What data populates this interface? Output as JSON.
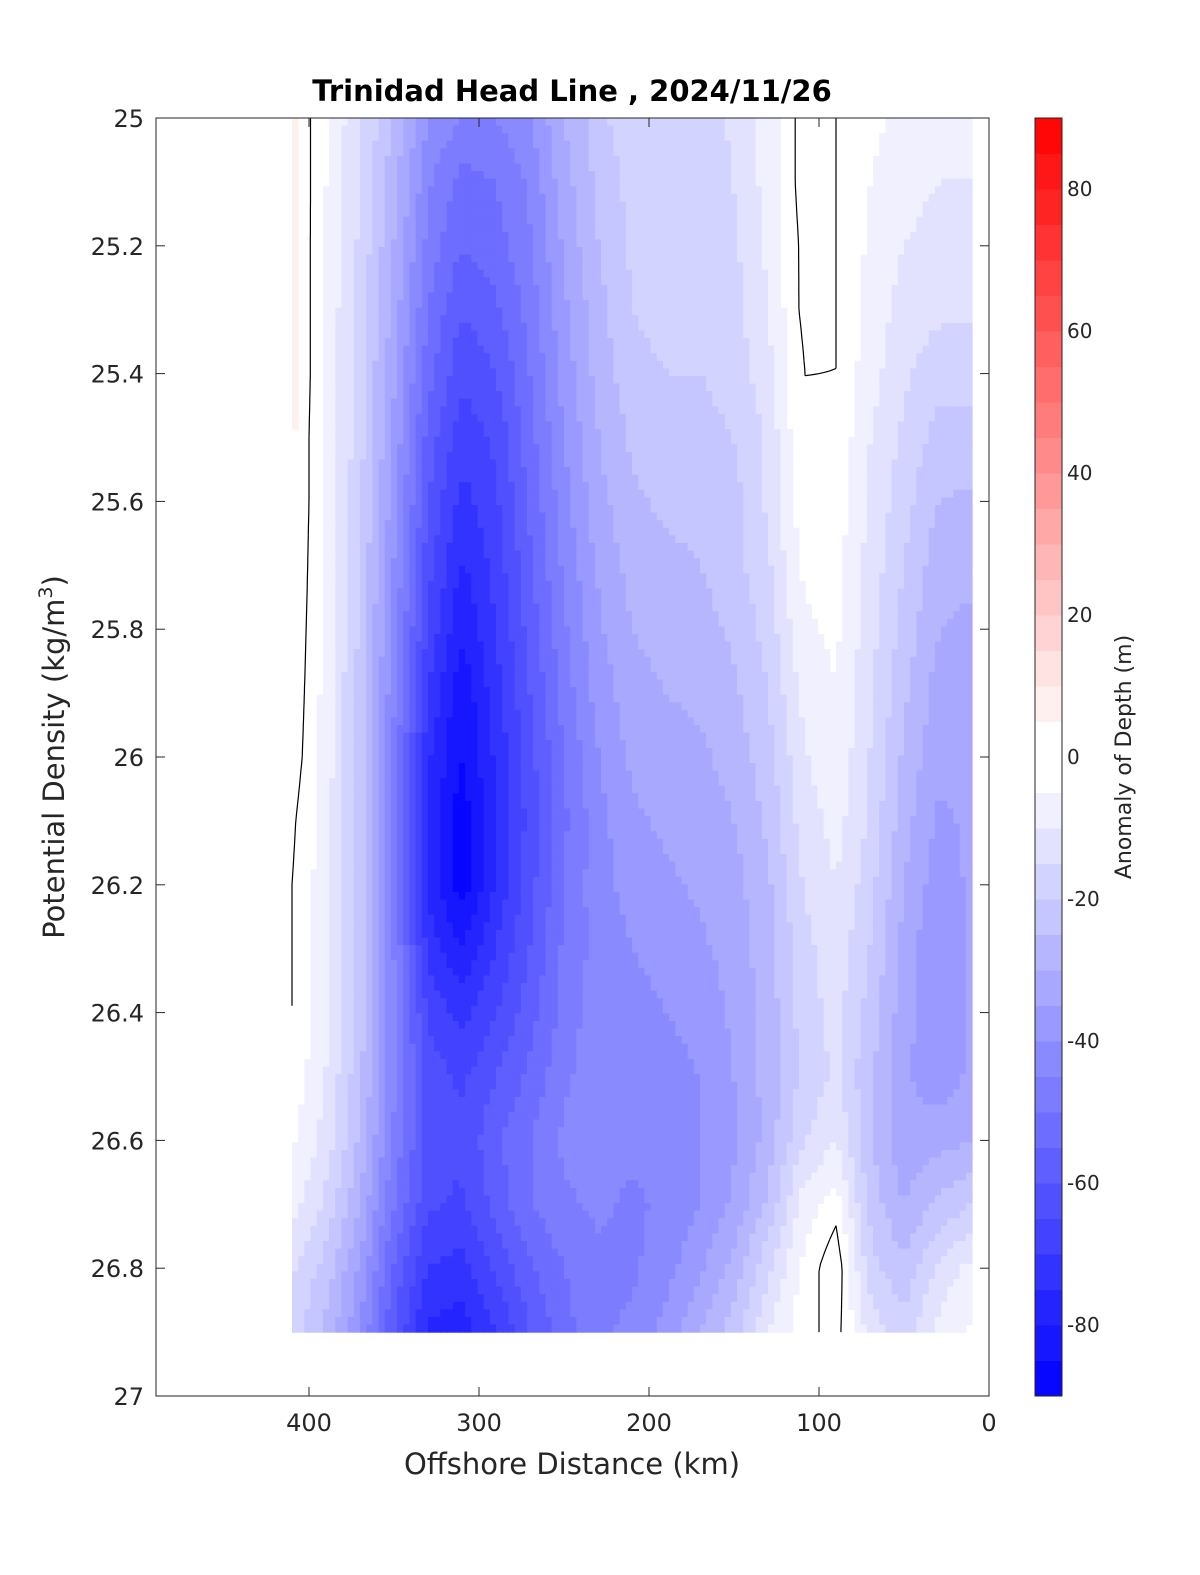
{
  "chart_data": {
    "type": "heatmap",
    "title": "Trinidad Head Line , 2024/11/26",
    "xlabel": "Offshore Distance (km)",
    "ylabel_main": "Potential Density (kg/m",
    "ylabel_sup": "3",
    "ylabel_close": ")",
    "xlim": [
      490,
      0
    ],
    "ylim": [
      25,
      27
    ],
    "y_reversed": true,
    "x_ticks": [
      400,
      300,
      200,
      100,
      0
    ],
    "x_tick_labels": [
      "400",
      "300",
      "200",
      "100",
      "0"
    ],
    "y_ticks": [
      25,
      25.2,
      25.4,
      25.6,
      25.8,
      26,
      26.2,
      26.4,
      26.6,
      26.8,
      27
    ],
    "y_tick_labels": [
      "25",
      "25.2",
      "25.4",
      "25.6",
      "25.8",
      "26",
      "26.2",
      "26.4",
      "26.6",
      "26.8",
      "27"
    ],
    "colorbar": {
      "label": "Anomaly of Depth (m)",
      "range": [
        -90,
        90
      ],
      "step": 5,
      "ticks": [
        80,
        60,
        40,
        20,
        0,
        -20,
        -40,
        -60,
        -80
      ],
      "tick_labels": [
        "80",
        "60",
        "40",
        "20",
        "0",
        "-20",
        "-40",
        "-60",
        "-80"
      ],
      "color_min": "#0000ff",
      "color_zero": "#ffffff",
      "color_max": "#ff0000"
    },
    "grid": false,
    "x": [
      410,
      390,
      370,
      350,
      330,
      310,
      290,
      270,
      250,
      230,
      210,
      190,
      170,
      150,
      130,
      110,
      90,
      70,
      50,
      30,
      10
    ],
    "y": [
      25.0,
      25.1,
      25.2,
      25.3,
      25.4,
      25.5,
      25.6,
      25.7,
      25.8,
      25.9,
      26.0,
      26.1,
      26.2,
      26.3,
      26.4,
      26.5,
      26.6,
      26.7,
      26.8,
      26.9
    ],
    "z": [
      [
        6,
        -5,
        -14,
        -26,
        -40,
        -45,
        -45,
        -40,
        -30,
        -22,
        -16,
        -16,
        -18,
        -14,
        -8,
        2,
        0,
        -4,
        -6,
        -8,
        -8
      ],
      [
        6,
        -5,
        -15,
        -28,
        -44,
        -52,
        -50,
        -44,
        -32,
        -24,
        -18,
        -16,
        -18,
        -15,
        -8,
        2,
        0,
        -5,
        -8,
        -10,
        -10
      ],
      [
        7,
        -6,
        -16,
        -30,
        -47,
        -55,
        -52,
        -46,
        -34,
        -25,
        -19,
        -17,
        -18,
        -16,
        -9,
        1,
        0,
        -6,
        -10,
        -12,
        -12
      ],
      [
        7,
        -6,
        -17,
        -32,
        -50,
        -60,
        -56,
        -48,
        -36,
        -27,
        -20,
        -18,
        -19,
        -17,
        -10,
        1,
        0,
        -7,
        -12,
        -14,
        -14
      ],
      [
        7,
        -6,
        -18,
        -34,
        -53,
        -64,
        -60,
        -50,
        -38,
        -28,
        -22,
        -20,
        -20,
        -18,
        -12,
        0,
        0,
        -8,
        -14,
        -18,
        -18
      ],
      [
        6,
        -6,
        -18,
        -36,
        -57,
        -68,
        -64,
        -52,
        -40,
        -30,
        -24,
        -22,
        -22,
        -20,
        -14,
        0,
        -1,
        -10,
        -16,
        -22,
        -22
      ],
      [
        6,
        -6,
        -19,
        -38,
        -60,
        -72,
        -66,
        -54,
        -42,
        -32,
        -26,
        -24,
        -24,
        -22,
        -14,
        -2,
        -2,
        -11,
        -18,
        -25,
        -26
      ],
      [
        6,
        -7,
        -20,
        -40,
        -63,
        -76,
        -68,
        -56,
        -44,
        -34,
        -28,
        -26,
        -25,
        -22,
        -16,
        -4,
        -3,
        -12,
        -20,
        -28,
        -29
      ],
      [
        5,
        -7,
        -21,
        -42,
        -66,
        -80,
        -70,
        -58,
        -46,
        -36,
        -30,
        -28,
        -27,
        -24,
        -18,
        -6,
        -4,
        -13,
        -22,
        -30,
        -31
      ],
      [
        4,
        -7,
        -22,
        -44,
        -70,
        -84,
        -72,
        -60,
        -48,
        -38,
        -32,
        -30,
        -29,
        -26,
        -20,
        -9,
        -5,
        -14,
        -24,
        -32,
        -32
      ],
      [
        3,
        -7,
        -22,
        -46,
        -74,
        -86,
        -74,
        -62,
        -50,
        -40,
        -34,
        -32,
        -31,
        -28,
        -22,
        -11,
        -6,
        -15,
        -26,
        -34,
        -33
      ],
      [
        1,
        -8,
        -22,
        -46,
        -76,
        -88,
        -75,
        -63,
        -51,
        -42,
        -36,
        -34,
        -33,
        -30,
        -24,
        -13,
        -8,
        -16,
        -28,
        -36,
        -34
      ],
      [
        0,
        -8,
        -22,
        -46,
        -76,
        -88,
        -74,
        -62,
        -50,
        -42,
        -38,
        -36,
        -34,
        -32,
        -26,
        -15,
        -10,
        -18,
        -30,
        -38,
        -34
      ],
      [
        0,
        -8,
        -22,
        -45,
        -72,
        -80,
        -70,
        -60,
        -49,
        -43,
        -40,
        -38,
        -36,
        -33,
        -27,
        -17,
        -12,
        -20,
        -32,
        -40,
        -34
      ],
      [
        0,
        -8,
        -22,
        -44,
        -66,
        -72,
        -65,
        -57,
        -48,
        -42,
        -42,
        -40,
        -38,
        -34,
        -28,
        -18,
        -13,
        -22,
        -33,
        -40,
        -34
      ],
      [
        -2,
        -10,
        -24,
        -44,
        -62,
        -66,
        -60,
        -54,
        -46,
        -42,
        -42,
        -42,
        -40,
        -35,
        -28,
        -19,
        -14,
        -24,
        -34,
        -38,
        -34
      ],
      [
        -4,
        -12,
        -26,
        -46,
        -62,
        -64,
        -56,
        -50,
        -44,
        -42,
        -44,
        -42,
        -40,
        -36,
        -28,
        -16,
        -10,
        -24,
        -34,
        -32,
        -30
      ],
      [
        -8,
        -16,
        -30,
        -50,
        -64,
        -66,
        -58,
        -50,
        -46,
        -44,
        -46,
        -44,
        -40,
        -34,
        -24,
        -8,
        -2,
        -22,
        -30,
        -24,
        -20
      ],
      [
        -14,
        -22,
        -36,
        -56,
        -70,
        -72,
        -64,
        -56,
        -50,
        -46,
        -46,
        -42,
        -36,
        -28,
        -16,
        -4,
        4,
        -18,
        -24,
        -14,
        -8
      ],
      [
        -18,
        -26,
        -40,
        -60,
        -76,
        -78,
        -70,
        -60,
        -52,
        -46,
        -44,
        -38,
        -30,
        -22,
        -10,
        -2,
        2,
        -12,
        -18,
        -8,
        -4
      ]
    ]
  }
}
